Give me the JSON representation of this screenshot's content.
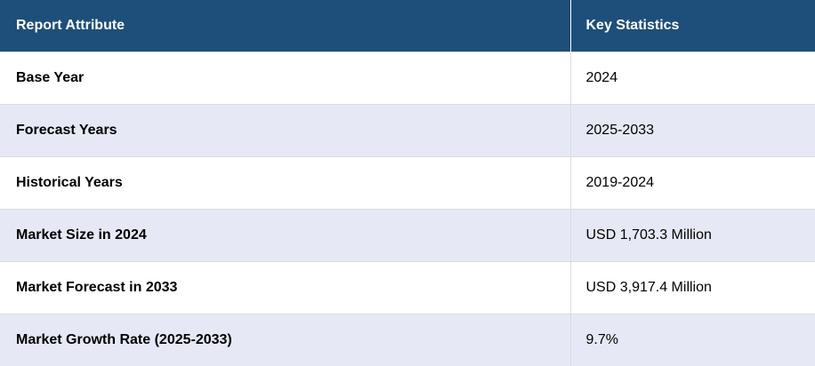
{
  "table": {
    "headers": [
      "Report Attribute",
      "Key Statistics"
    ],
    "rows": [
      {
        "attribute": "Base Year",
        "value": "2024"
      },
      {
        "attribute": "Forecast Years",
        "value": "2025-2033"
      },
      {
        "attribute": "Historical Years",
        "value": "2019-2024"
      },
      {
        "attribute": "Market Size in 2024",
        "value": "USD 1,703.3 Million"
      },
      {
        "attribute": "Market Forecast in 2033",
        "value": "USD 3,917.4 Million"
      },
      {
        "attribute": "Market Growth Rate (2025-2033)",
        "value": "9.7%"
      }
    ]
  },
  "colors": {
    "header_bg": "#1e4e7a",
    "header_text": "#ffffff",
    "stripe_bg": "#e6e9f5",
    "row_bg": "#ffffff"
  }
}
